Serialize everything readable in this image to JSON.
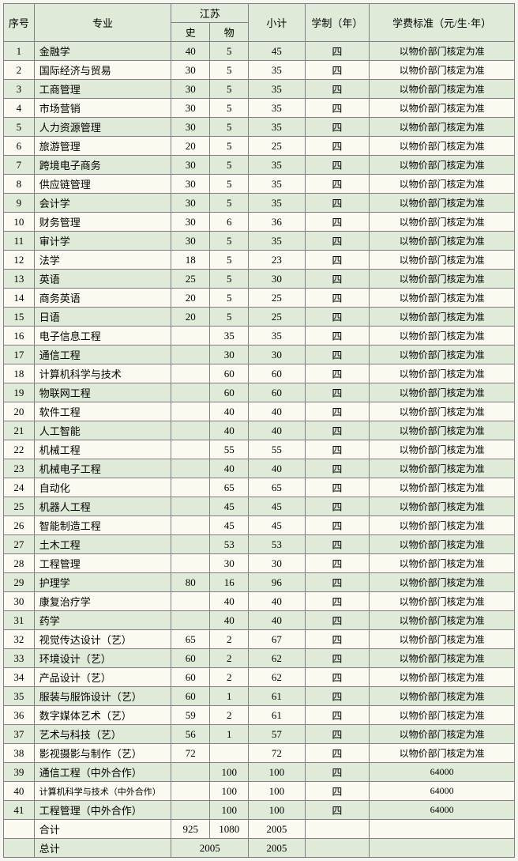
{
  "headers": {
    "seq": "序号",
    "major": "专业",
    "group": "江苏",
    "shi": "史",
    "wu": "物",
    "subtotal": "小计",
    "duration": "学制（年）",
    "fee": "学费标准（元/生·年）"
  },
  "rows": [
    {
      "seq": "1",
      "major": "金融学",
      "shi": "40",
      "wu": "5",
      "sub": "45",
      "dur": "四",
      "fee": "以物价部门核定为准"
    },
    {
      "seq": "2",
      "major": "国际经济与贸易",
      "shi": "30",
      "wu": "5",
      "sub": "35",
      "dur": "四",
      "fee": "以物价部门核定为准"
    },
    {
      "seq": "3",
      "major": "工商管理",
      "shi": "30",
      "wu": "5",
      "sub": "35",
      "dur": "四",
      "fee": "以物价部门核定为准"
    },
    {
      "seq": "4",
      "major": "市场营销",
      "shi": "30",
      "wu": "5",
      "sub": "35",
      "dur": "四",
      "fee": "以物价部门核定为准"
    },
    {
      "seq": "5",
      "major": "人力资源管理",
      "shi": "30",
      "wu": "5",
      "sub": "35",
      "dur": "四",
      "fee": "以物价部门核定为准"
    },
    {
      "seq": "6",
      "major": "旅游管理",
      "shi": "20",
      "wu": "5",
      "sub": "25",
      "dur": "四",
      "fee": "以物价部门核定为准"
    },
    {
      "seq": "7",
      "major": "跨境电子商务",
      "shi": "30",
      "wu": "5",
      "sub": "35",
      "dur": "四",
      "fee": "以物价部门核定为准"
    },
    {
      "seq": "8",
      "major": "供应链管理",
      "shi": "30",
      "wu": "5",
      "sub": "35",
      "dur": "四",
      "fee": "以物价部门核定为准"
    },
    {
      "seq": "9",
      "major": "会计学",
      "shi": "30",
      "wu": "5",
      "sub": "35",
      "dur": "四",
      "fee": "以物价部门核定为准"
    },
    {
      "seq": "10",
      "major": "财务管理",
      "shi": "30",
      "wu": "6",
      "sub": "36",
      "dur": "四",
      "fee": "以物价部门核定为准"
    },
    {
      "seq": "11",
      "major": "审计学",
      "shi": "30",
      "wu": "5",
      "sub": "35",
      "dur": "四",
      "fee": "以物价部门核定为准"
    },
    {
      "seq": "12",
      "major": "法学",
      "shi": "18",
      "wu": "5",
      "sub": "23",
      "dur": "四",
      "fee": "以物价部门核定为准"
    },
    {
      "seq": "13",
      "major": "英语",
      "shi": "25",
      "wu": "5",
      "sub": "30",
      "dur": "四",
      "fee": "以物价部门核定为准"
    },
    {
      "seq": "14",
      "major": "商务英语",
      "shi": "20",
      "wu": "5",
      "sub": "25",
      "dur": "四",
      "fee": "以物价部门核定为准"
    },
    {
      "seq": "15",
      "major": "日语",
      "shi": "20",
      "wu": "5",
      "sub": "25",
      "dur": "四",
      "fee": "以物价部门核定为准"
    },
    {
      "seq": "16",
      "major": "电子信息工程",
      "shi": "",
      "wu": "35",
      "sub": "35",
      "dur": "四",
      "fee": "以物价部门核定为准"
    },
    {
      "seq": "17",
      "major": "通信工程",
      "shi": "",
      "wu": "30",
      "sub": "30",
      "dur": "四",
      "fee": "以物价部门核定为准"
    },
    {
      "seq": "18",
      "major": "计算机科学与技术",
      "shi": "",
      "wu": "60",
      "sub": "60",
      "dur": "四",
      "fee": "以物价部门核定为准"
    },
    {
      "seq": "19",
      "major": "物联网工程",
      "shi": "",
      "wu": "60",
      "sub": "60",
      "dur": "四",
      "fee": "以物价部门核定为准"
    },
    {
      "seq": "20",
      "major": "软件工程",
      "shi": "",
      "wu": "40",
      "sub": "40",
      "dur": "四",
      "fee": "以物价部门核定为准"
    },
    {
      "seq": "21",
      "major": "人工智能",
      "shi": "",
      "wu": "40",
      "sub": "40",
      "dur": "四",
      "fee": "以物价部门核定为准"
    },
    {
      "seq": "22",
      "major": "机械工程",
      "shi": "",
      "wu": "55",
      "sub": "55",
      "dur": "四",
      "fee": "以物价部门核定为准"
    },
    {
      "seq": "23",
      "major": "机械电子工程",
      "shi": "",
      "wu": "40",
      "sub": "40",
      "dur": "四",
      "fee": "以物价部门核定为准"
    },
    {
      "seq": "24",
      "major": "自动化",
      "shi": "",
      "wu": "65",
      "sub": "65",
      "dur": "四",
      "fee": "以物价部门核定为准"
    },
    {
      "seq": "25",
      "major": "机器人工程",
      "shi": "",
      "wu": "45",
      "sub": "45",
      "dur": "四",
      "fee": "以物价部门核定为准"
    },
    {
      "seq": "26",
      "major": "智能制造工程",
      "shi": "",
      "wu": "45",
      "sub": "45",
      "dur": "四",
      "fee": "以物价部门核定为准"
    },
    {
      "seq": "27",
      "major": "土木工程",
      "shi": "",
      "wu": "53",
      "sub": "53",
      "dur": "四",
      "fee": "以物价部门核定为准"
    },
    {
      "seq": "28",
      "major": "工程管理",
      "shi": "",
      "wu": "30",
      "sub": "30",
      "dur": "四",
      "fee": "以物价部门核定为准"
    },
    {
      "seq": "29",
      "major": "护理学",
      "shi": "80",
      "wu": "16",
      "sub": "96",
      "dur": "四",
      "fee": "以物价部门核定为准"
    },
    {
      "seq": "30",
      "major": "康复治疗学",
      "shi": "",
      "wu": "40",
      "sub": "40",
      "dur": "四",
      "fee": "以物价部门核定为准"
    },
    {
      "seq": "31",
      "major": "药学",
      "shi": "",
      "wu": "40",
      "sub": "40",
      "dur": "四",
      "fee": "以物价部门核定为准"
    },
    {
      "seq": "32",
      "major": "视觉传达设计（艺）",
      "shi": "65",
      "wu": "2",
      "sub": "67",
      "dur": "四",
      "fee": "以物价部门核定为准"
    },
    {
      "seq": "33",
      "major": "环境设计（艺）",
      "shi": "60",
      "wu": "2",
      "sub": "62",
      "dur": "四",
      "fee": "以物价部门核定为准"
    },
    {
      "seq": "34",
      "major": "产品设计（艺）",
      "shi": "60",
      "wu": "2",
      "sub": "62",
      "dur": "四",
      "fee": "以物价部门核定为准"
    },
    {
      "seq": "35",
      "major": "服装与服饰设计（艺）",
      "shi": "60",
      "wu": "1",
      "sub": "61",
      "dur": "四",
      "fee": "以物价部门核定为准"
    },
    {
      "seq": "36",
      "major": "数字媒体艺术（艺）",
      "shi": "59",
      "wu": "2",
      "sub": "61",
      "dur": "四",
      "fee": "以物价部门核定为准"
    },
    {
      "seq": "37",
      "major": "艺术与科技（艺）",
      "shi": "56",
      "wu": "1",
      "sub": "57",
      "dur": "四",
      "fee": "以物价部门核定为准"
    },
    {
      "seq": "38",
      "major": "影视摄影与制作（艺）",
      "shi": "72",
      "wu": "",
      "sub": "72",
      "dur": "四",
      "fee": "以物价部门核定为准"
    },
    {
      "seq": "39",
      "major": "通信工程（中外合作）",
      "shi": "",
      "wu": "100",
      "sub": "100",
      "dur": "四",
      "fee": "64000"
    },
    {
      "seq": "40",
      "major": "计算机科学与技术（中外合作）",
      "majorSmall": true,
      "shi": "",
      "wu": "100",
      "sub": "100",
      "dur": "四",
      "fee": "64000"
    },
    {
      "seq": "41",
      "major": "工程管理（中外合作）",
      "shi": "",
      "wu": "100",
      "sub": "100",
      "dur": "四",
      "fee": "64000"
    }
  ],
  "subtotal": {
    "label": "合计",
    "shi": "925",
    "wu": "1080",
    "sub": "2005"
  },
  "grand": {
    "label": "总计",
    "value": "2005"
  }
}
